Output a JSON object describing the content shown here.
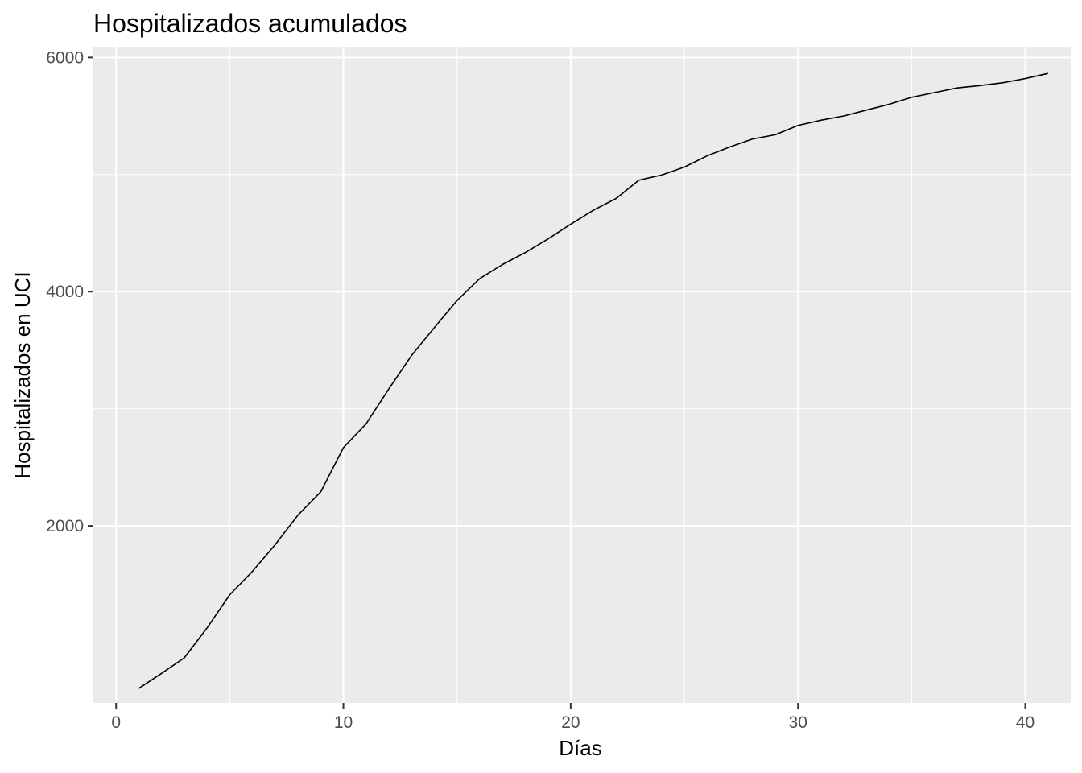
{
  "chart_data": {
    "type": "line",
    "title": "Hospitalizados acumulados",
    "xlabel": "Días",
    "ylabel": "Hospitalizados en UCI",
    "xlim": [
      -1,
      42
    ],
    "ylim": [
      488,
      6092
    ],
    "x_ticks": [
      0,
      10,
      20,
      30,
      40
    ],
    "x_minor_ticks": [
      5,
      15,
      25,
      35
    ],
    "y_ticks": [
      2000,
      4000,
      6000
    ],
    "y_minor_ticks": [
      1000,
      3000,
      5000
    ],
    "grid": true,
    "background": "#ebebeb",
    "grid_color": "#ffffff",
    "line_color": "#000000",
    "series": [
      {
        "x": [
          1,
          2,
          3,
          4,
          5,
          6,
          7,
          8,
          9,
          10,
          11,
          12,
          13,
          14,
          15,
          16,
          17,
          18,
          19,
          20,
          21,
          22,
          23,
          24,
          25,
          26,
          27,
          28,
          29,
          30,
          31,
          32,
          33,
          34,
          35,
          36,
          37,
          38,
          39,
          40,
          41
        ],
        "values": [
          612,
          740,
          873,
          1128,
          1412,
          1612,
          1840,
          2092,
          2290,
          2668,
          2872,
          3170,
          3456,
          3693,
          3925,
          4112,
          4232,
          4334,
          4450,
          4576,
          4696,
          4796,
          4952,
          4996,
          5064,
          5160,
          5236,
          5304,
          5340,
          5420,
          5464,
          5500,
          5550,
          5600,
          5660,
          5700,
          5740,
          5760,
          5784,
          5820,
          5864
        ]
      }
    ]
  }
}
